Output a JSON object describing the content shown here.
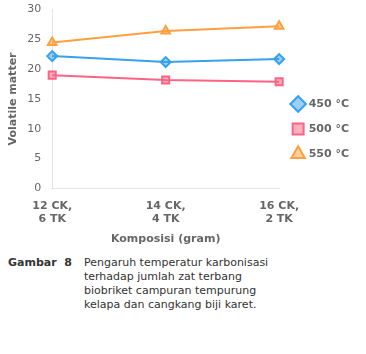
{
  "chart_data": {
    "type": "line",
    "categories": [
      "12 CK,\n6 TK",
      "14 CK,\n4 TK",
      "16 CK,\n2 TK"
    ],
    "series": [
      {
        "name": "450 °C",
        "values": [
          22.2,
          21.2,
          21.7
        ],
        "marker": "diamond"
      },
      {
        "name": "500 °C",
        "values": [
          19.0,
          18.2,
          17.9
        ],
        "marker": "square"
      },
      {
        "name": "550 °C",
        "values": [
          24.5,
          26.4,
          27.2
        ],
        "marker": "triangle"
      }
    ],
    "x_label": "Komposisi (gram)",
    "y_label": "Volatile matter",
    "ylim": [
      0,
      30
    ],
    "yticks": [
      0,
      5,
      10,
      15,
      20,
      25,
      30
    ],
    "grid": false,
    "legend": "right",
    "annotations": [
      "Gambar  8",
      "Pengaruh temperatur karbonisasi\nterhadap jumlah zat terbang\nbiobriket campuran tempurung\nkelapa dan cangkang biji karet."
    ]
  }
}
